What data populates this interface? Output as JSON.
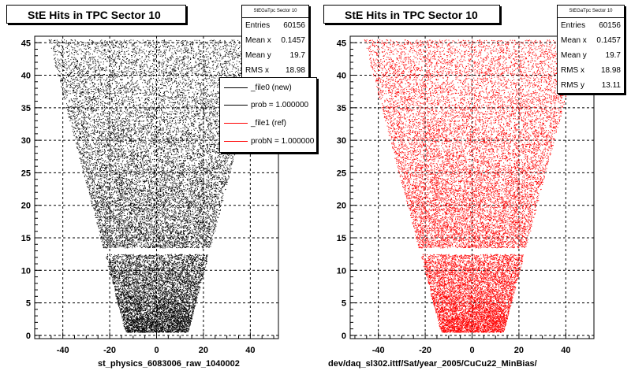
{
  "left_pad": {
    "title": "StE Hits in TPC Sector 10",
    "stats": {
      "title": "StEGaTpc Sector 10",
      "rows": [
        {
          "label": "Entries",
          "value": "60156"
        },
        {
          "label": "Mean x",
          "value": "0.1457"
        },
        {
          "label": "Mean y",
          "value": "19.7"
        },
        {
          "label": "RMS x",
          "value": "18.98"
        }
      ]
    },
    "legend": {
      "entries": [
        {
          "label": "_file0 (new)",
          "color": "#000000"
        },
        {
          "label": "prob = 1.000000",
          "color": "#000000"
        },
        {
          "label": "_file1 (ref)",
          "color": "#ff0000"
        },
        {
          "label": "probN = 1.000000",
          "color": "#ff0000"
        }
      ]
    },
    "bottom_label": "st_physics_6083006_raw_1040002"
  },
  "right_pad": {
    "title": "StE Hits in TPC Sector 10",
    "stats": {
      "title": "StEGaTpc Sector 10",
      "rows": [
        {
          "label": "Entries",
          "value": "60156"
        },
        {
          "label": "Mean x",
          "value": "0.1457"
        },
        {
          "label": "Mean y",
          "value": "19.7"
        },
        {
          "label": "RMS x",
          "value": "18.98"
        },
        {
          "label": "RMS y",
          "value": "13.11"
        }
      ]
    },
    "bottom_label": "dev/daq_sl302.ittf/Sat/year_2005/CuCu22_MinBias/"
  },
  "chart_data": [
    {
      "type": "scatter",
      "title": "StE Hits in TPC Sector 10",
      "xlim": [
        -52,
        52
      ],
      "ylim": [
        -0.5,
        46
      ],
      "xticks": [
        -40,
        -20,
        0,
        20,
        40
      ],
      "yticks": [
        0,
        5,
        10,
        15,
        20,
        25,
        30,
        35,
        40,
        45
      ],
      "grid": true,
      "color": "#000000",
      "entries": 60156,
      "mean_x": 0.1457,
      "mean_y": 19.7,
      "rms_x": 18.98,
      "region": {
        "y_ranges": [
          [
            0.5,
            12.5
          ],
          [
            13.5,
            45.5
          ]
        ],
        "half_width_at_y0": 13,
        "half_width_at_y45": 46,
        "gap_y": [
          12.5,
          13.5
        ]
      }
    },
    {
      "type": "scatter",
      "title": "StE Hits in TPC Sector 10",
      "xlim": [
        -52,
        52
      ],
      "ylim": [
        -0.5,
        46
      ],
      "xticks": [
        -40,
        -20,
        0,
        20,
        40
      ],
      "yticks": [
        0,
        5,
        10,
        15,
        20,
        25,
        30,
        35,
        40,
        45
      ],
      "grid": true,
      "color": "#ff0000",
      "entries": 60156,
      "mean_x": 0.1457,
      "mean_y": 19.7,
      "rms_x": 18.98,
      "rms_y": 13.11,
      "region": {
        "y_ranges": [
          [
            0.5,
            12.5
          ],
          [
            13.5,
            45.5
          ]
        ],
        "half_width_at_y0": 13,
        "half_width_at_y45": 46,
        "gap_y": [
          12.5,
          13.5
        ]
      }
    }
  ]
}
